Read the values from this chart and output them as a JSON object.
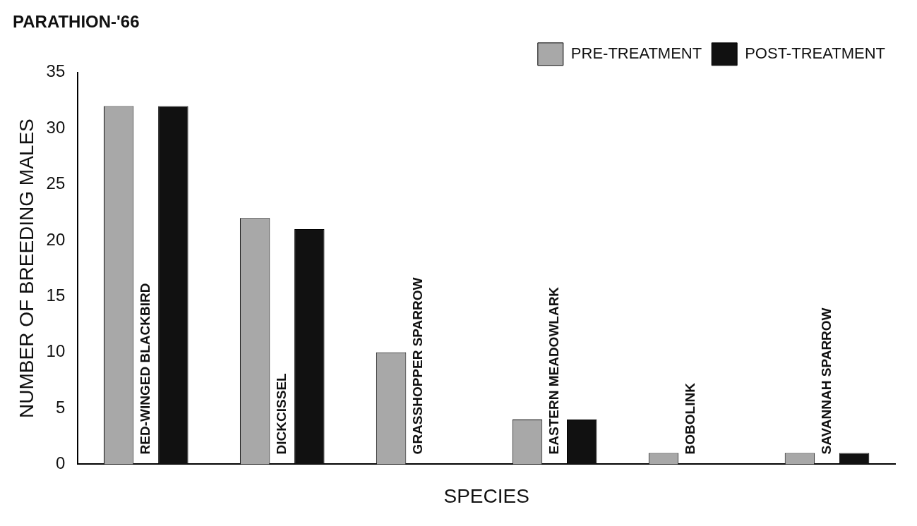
{
  "chart_data": {
    "type": "bar",
    "title": "PARATHION-'66",
    "xlabel": "SPECIES",
    "ylabel": "NUMBER OF BREEDING MALES",
    "categories": [
      "RED-WINGED BLACKBIRD",
      "DICKCISSEL",
      "GRASSHOPPER SPARROW",
      "EASTERN MEADOWLARK",
      "BOBOLINK",
      "SAVANNAH SPARROW"
    ],
    "series": [
      {
        "name": "PRE-TREATMENT",
        "color": "#a8a8a8",
        "values": [
          32,
          22,
          10,
          4,
          1,
          1
        ]
      },
      {
        "name": "POST-TREATMENT",
        "color": "#111111",
        "values": [
          32,
          21,
          0,
          4,
          0,
          1
        ]
      }
    ],
    "ylim": [
      0,
      35
    ],
    "yticks": [
      0,
      5,
      10,
      15,
      20,
      25,
      30,
      35
    ],
    "grid": false,
    "legend": "top right"
  }
}
